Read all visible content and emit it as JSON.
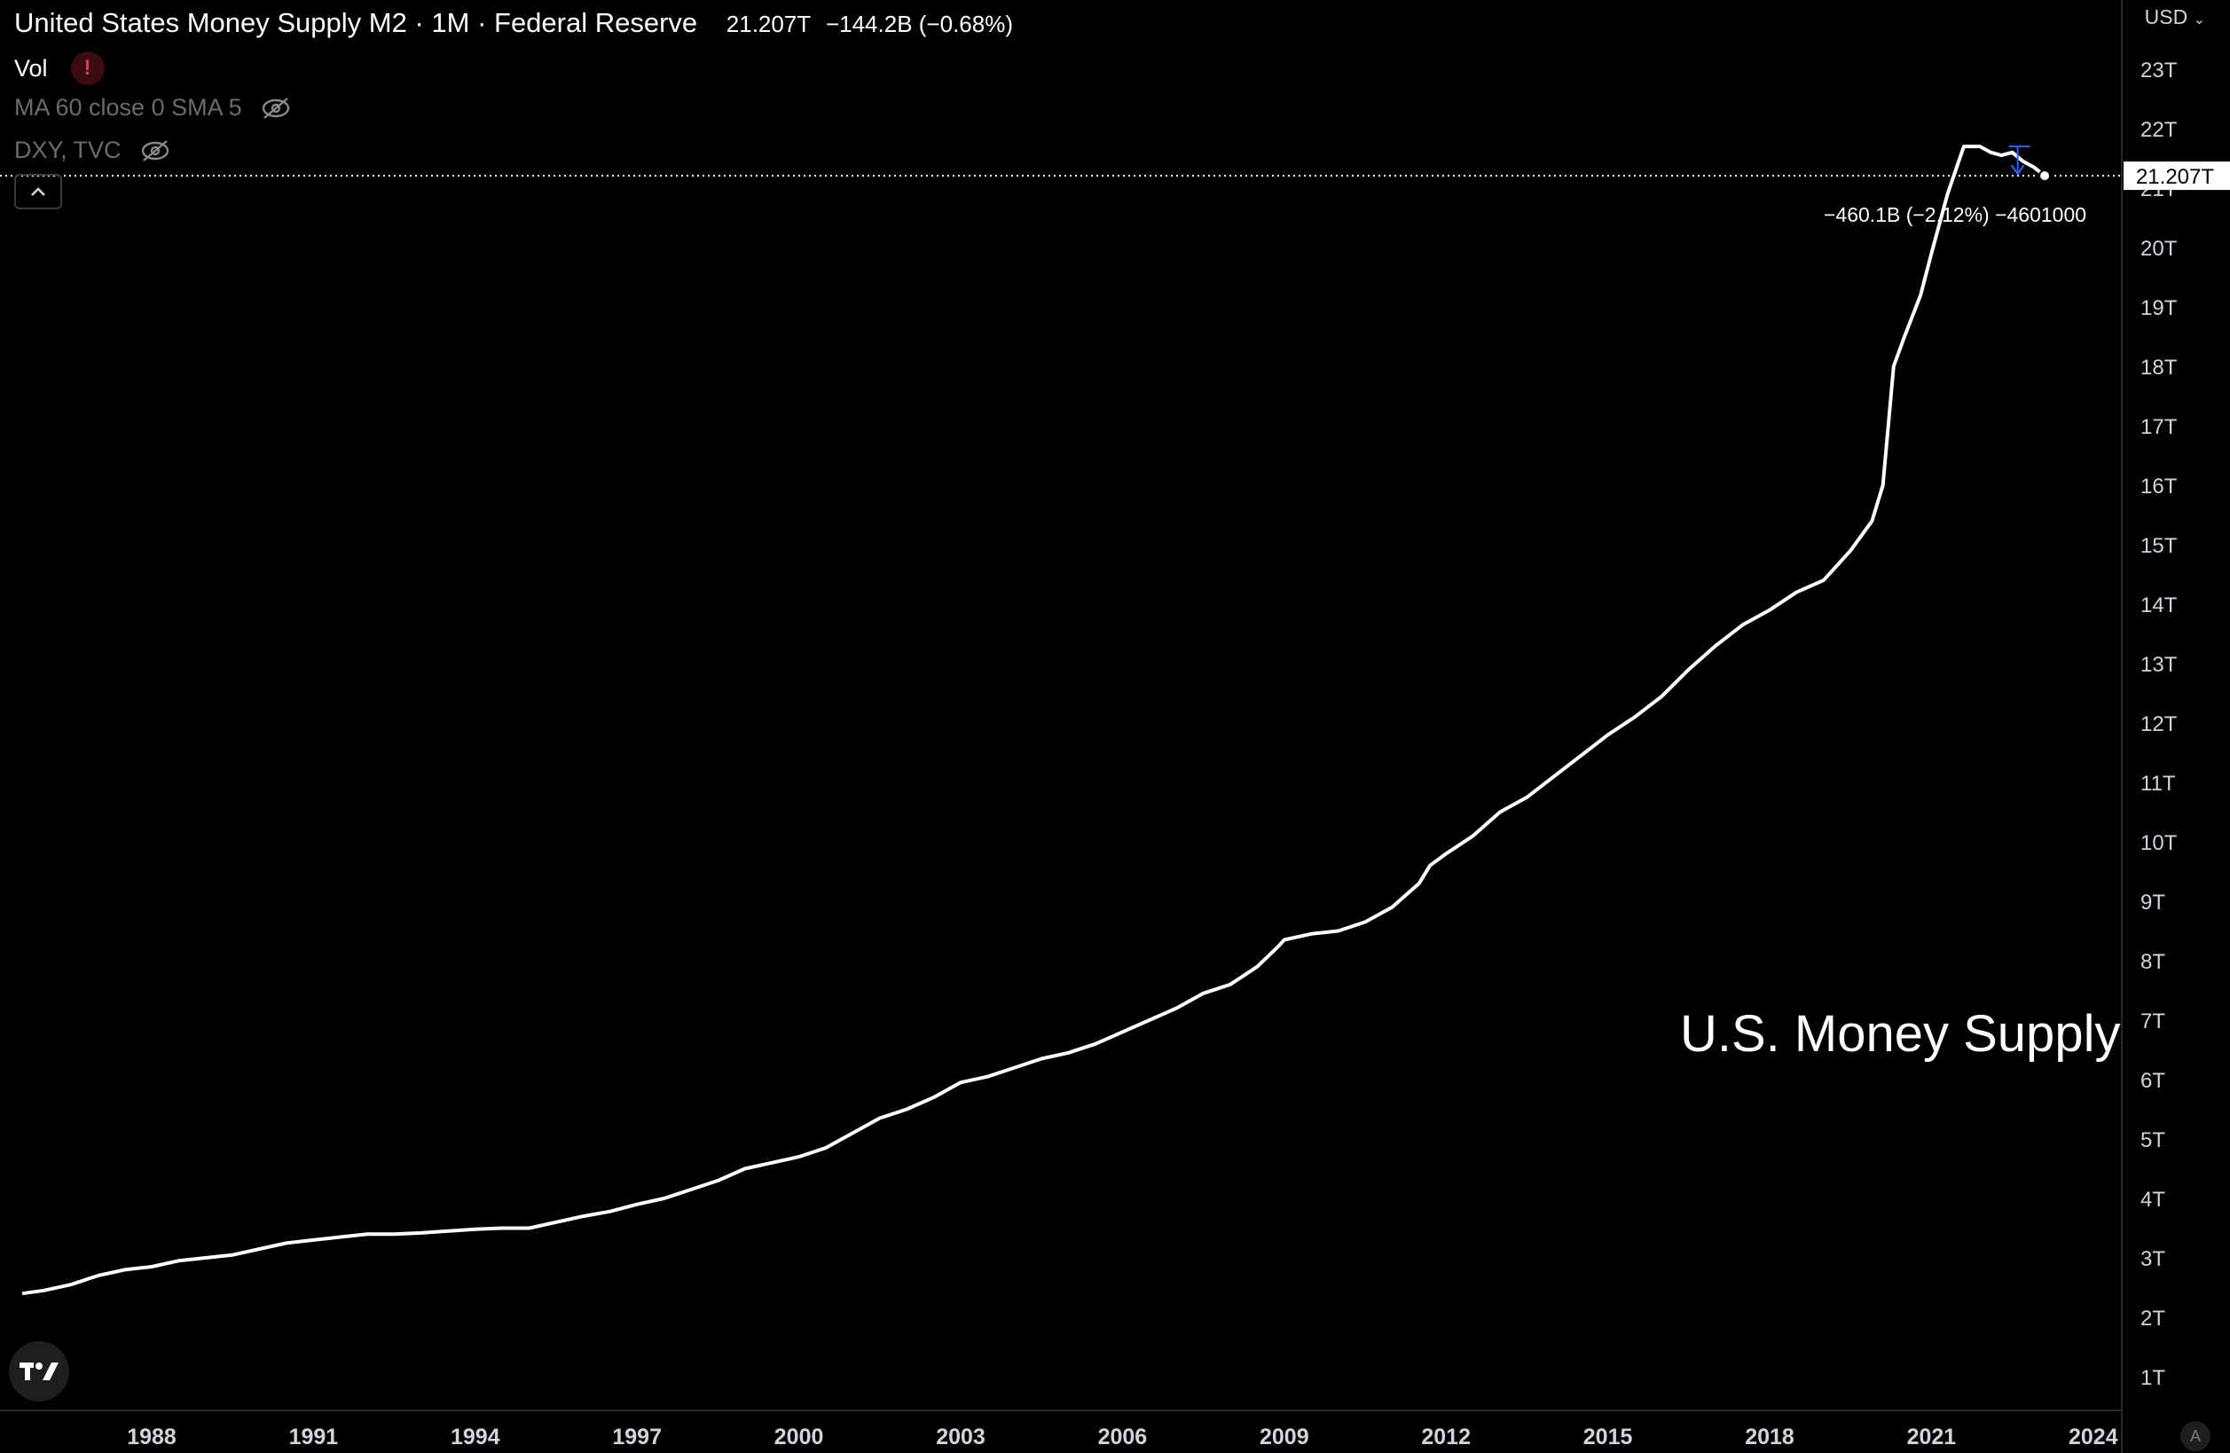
{
  "legend": {
    "symbol_title": "United States Money Supply M2 · 1M · Federal Reserve",
    "last_value": "21.207T",
    "change": "−144.2B (−0.68%)",
    "vol_label": "Vol",
    "vol_warning": "!",
    "ma_label": "MA 60 close 0 SMA 5",
    "compare_label": "DXY, TVC"
  },
  "collapse_button": "^",
  "price_scale": {
    "currency": "USD",
    "last_price_label": "21.207T"
  },
  "measure_annotation": "−460.1B (−2.12%) −4601000",
  "watermark_text": "U.S. Money Supply",
  "icons": {
    "warning": "exclamation-icon",
    "eye_off": "eye-off-icon",
    "collapse": "chevron-up-icon",
    "logo": "tradingview-logo-icon",
    "auto_scale": "auto-scale-icon"
  },
  "auto_scale_label": "A",
  "colors": {
    "background": "#000000",
    "series": "#ffffff",
    "grid_text": "#d1d4dc",
    "warning": "#f23645",
    "measure_tool": "#2962ff"
  },
  "chart_data": {
    "type": "line",
    "title": "United States Money Supply M2",
    "ylabel": "",
    "xlabel": "",
    "ylim": [
      0.5,
      23.8
    ],
    "xlim": [
      1985.6,
      2024.8
    ],
    "yticks": [
      "1T",
      "2T",
      "3T",
      "4T",
      "5T",
      "6T",
      "7T",
      "8T",
      "9T",
      "10T",
      "11T",
      "12T",
      "13T",
      "14T",
      "15T",
      "16T",
      "17T",
      "18T",
      "19T",
      "20T",
      "21T",
      "22T",
      "23T"
    ],
    "ytick_values": [
      1,
      2,
      3,
      4,
      5,
      6,
      7,
      8,
      9,
      10,
      11,
      12,
      13,
      14,
      15,
      16,
      17,
      18,
      19,
      20,
      21,
      22,
      23
    ],
    "xticks": [
      "1988",
      "1991",
      "1994",
      "1997",
      "2000",
      "2003",
      "2006",
      "2009",
      "2012",
      "2015",
      "2018",
      "2021",
      "2024"
    ],
    "xtick_values": [
      1988,
      1991,
      1994,
      1997,
      2000,
      2003,
      2006,
      2009,
      2012,
      2015,
      2018,
      2021,
      2024
    ],
    "grid": false,
    "series": [
      {
        "x": [
          1985.6,
          1986.0,
          1986.5,
          1987.0,
          1987.5,
          1988.0,
          1988.5,
          1989.0,
          1989.5,
          1990.0,
          1990.5,
          1991.0,
          1991.5,
          1992.0,
          1992.5,
          1993.0,
          1993.5,
          1994.0,
          1994.5,
          1995.0,
          1995.5,
          1996.0,
          1996.5,
          1997.0,
          1997.5,
          1998.0,
          1998.5,
          1999.0,
          1999.5,
          2000.0,
          2000.5,
          2001.0,
          2001.5,
          2002.0,
          2002.5,
          2003.0,
          2003.5,
          2004.0,
          2004.5,
          2005.0,
          2005.5,
          2006.0,
          2006.5,
          2007.0,
          2007.5,
          2008.0,
          2008.5,
          2008.9,
          2009.0,
          2009.5,
          2010.0,
          2010.5,
          2011.0,
          2011.5,
          2011.7,
          2012.0,
          2012.5,
          2013.0,
          2013.5,
          2014.0,
          2014.5,
          2015.0,
          2015.5,
          2016.0,
          2016.5,
          2017.0,
          2017.5,
          2018.0,
          2018.5,
          2019.0,
          2019.5,
          2019.9,
          2020.1,
          2020.3,
          2020.5,
          2020.8,
          2021.0,
          2021.3,
          2021.6,
          2021.9,
          2022.1,
          2022.3,
          2022.5,
          2022.7,
          2022.9,
          2023.1
        ],
        "values": [
          2.4,
          2.45,
          2.55,
          2.7,
          2.8,
          2.85,
          2.95,
          3.0,
          3.05,
          3.15,
          3.25,
          3.3,
          3.35,
          3.4,
          3.4,
          3.42,
          3.45,
          3.48,
          3.5,
          3.5,
          3.6,
          3.7,
          3.78,
          3.9,
          4.0,
          4.15,
          4.3,
          4.5,
          4.6,
          4.7,
          4.85,
          5.1,
          5.35,
          5.5,
          5.7,
          5.95,
          6.05,
          6.2,
          6.35,
          6.45,
          6.6,
          6.8,
          7.0,
          7.2,
          7.45,
          7.6,
          7.9,
          8.25,
          8.35,
          8.45,
          8.5,
          8.65,
          8.9,
          9.3,
          9.6,
          9.8,
          10.1,
          10.5,
          10.75,
          11.1,
          11.45,
          11.8,
          12.1,
          12.45,
          12.9,
          13.3,
          13.65,
          13.9,
          14.2,
          14.4,
          14.9,
          15.4,
          16.0,
          18.0,
          18.5,
          19.2,
          19.9,
          20.9,
          21.7,
          21.7,
          21.6,
          21.55,
          21.6,
          21.45,
          21.35,
          21.207
        ]
      }
    ],
    "last_point": {
      "x": 2023.1,
      "value": 21.207
    }
  }
}
